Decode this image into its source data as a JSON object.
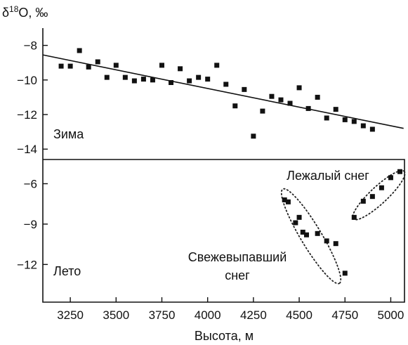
{
  "chart_data": [
    {
      "panel": "winter",
      "type": "scatter",
      "label": "Зима",
      "ylabel": "δ18O, ‰",
      "ylim": [
        -14.6,
        -7.0
      ],
      "yticks": [
        -8,
        -10,
        -12,
        -14
      ],
      "ytick_labels": [
        "−8",
        "−10",
        "−12",
        "−14"
      ],
      "points": [
        {
          "x": 3200,
          "y": -9.2
        },
        {
          "x": 3250,
          "y": -9.2
        },
        {
          "x": 3300,
          "y": -8.3
        },
        {
          "x": 3350,
          "y": -9.25
        },
        {
          "x": 3400,
          "y": -8.95
        },
        {
          "x": 3450,
          "y": -9.85
        },
        {
          "x": 3500,
          "y": -9.15
        },
        {
          "x": 3550,
          "y": -9.85
        },
        {
          "x": 3600,
          "y": -10.05
        },
        {
          "x": 3650,
          "y": -9.95
        },
        {
          "x": 3700,
          "y": -10.0
        },
        {
          "x": 3750,
          "y": -9.15
        },
        {
          "x": 3800,
          "y": -10.15
        },
        {
          "x": 3850,
          "y": -9.35
        },
        {
          "x": 3900,
          "y": -10.05
        },
        {
          "x": 3950,
          "y": -9.85
        },
        {
          "x": 4000,
          "y": -9.95
        },
        {
          "x": 4050,
          "y": -9.15
        },
        {
          "x": 4100,
          "y": -10.25
        },
        {
          "x": 4150,
          "y": -11.5
        },
        {
          "x": 4200,
          "y": -10.55
        },
        {
          "x": 4250,
          "y": -13.25
        },
        {
          "x": 4300,
          "y": -11.8
        },
        {
          "x": 4350,
          "y": -10.95
        },
        {
          "x": 4400,
          "y": -11.15
        },
        {
          "x": 4450,
          "y": -11.35
        },
        {
          "x": 4500,
          "y": -10.45
        },
        {
          "x": 4550,
          "y": -11.65
        },
        {
          "x": 4600,
          "y": -11.0
        },
        {
          "x": 4650,
          "y": -12.2
        },
        {
          "x": 4700,
          "y": -11.7
        },
        {
          "x": 4750,
          "y": -12.3
        },
        {
          "x": 4800,
          "y": -12.4
        },
        {
          "x": 4850,
          "y": -12.65
        },
        {
          "x": 4900,
          "y": -12.85
        }
      ],
      "trend": {
        "x": [
          3100,
          5070
        ],
        "y": [
          -8.55,
          -12.8
        ]
      }
    },
    {
      "panel": "summer",
      "type": "scatter",
      "label": "Лето",
      "ylim": [
        -14.8,
        -4.2
      ],
      "yticks": [
        -6,
        -9,
        -12
      ],
      "ytick_labels": [
        "−6",
        "−9",
        "−12"
      ],
      "groups": [
        {
          "annotation": [
            "Свежевыпавший",
            "снег"
          ],
          "points": [
            {
              "x": 4420,
              "y": -7.2
            },
            {
              "x": 4440,
              "y": -7.35
            },
            {
              "x": 4480,
              "y": -8.9
            },
            {
              "x": 4500,
              "y": -8.5
            },
            {
              "x": 4520,
              "y": -9.6
            },
            {
              "x": 4540,
              "y": -9.8
            },
            {
              "x": 4600,
              "y": -9.7
            },
            {
              "x": 4650,
              "y": -10.25
            },
            {
              "x": 4700,
              "y": -10.45
            },
            {
              "x": 4750,
              "y": -12.65
            }
          ],
          "ellipse": {
            "cx": 4565,
            "cy": -9.9,
            "rx": 300,
            "ry": 1.4,
            "angle_deg": 59
          }
        },
        {
          "annotation": [
            "Лежалый снег"
          ],
          "points": [
            {
              "x": 4800,
              "y": -8.5
            },
            {
              "x": 4850,
              "y": -7.3
            },
            {
              "x": 4900,
              "y": -6.95
            },
            {
              "x": 4950,
              "y": -6.3
            },
            {
              "x": 5000,
              "y": -5.55
            },
            {
              "x": 5050,
              "y": -5.1
            }
          ],
          "ellipse": {
            "cx": 4935,
            "cy": -6.85,
            "rx": 190,
            "ry": 1.15,
            "angle_deg": -43
          }
        }
      ]
    }
  ],
  "x_axis": {
    "label": "Высота, м",
    "xlim": [
      3100,
      5075
    ],
    "ticks": [
      3250,
      3500,
      3750,
      4000,
      4250,
      4500,
      4750,
      5000
    ],
    "tick_labels": [
      "3250",
      "3500",
      "3750",
      "4000",
      "4250",
      "4500",
      "4750",
      "5000"
    ]
  },
  "colors": {
    "marker": "#111111",
    "line": "#111111",
    "frame": "#111111",
    "ellipse": "#222222"
  }
}
